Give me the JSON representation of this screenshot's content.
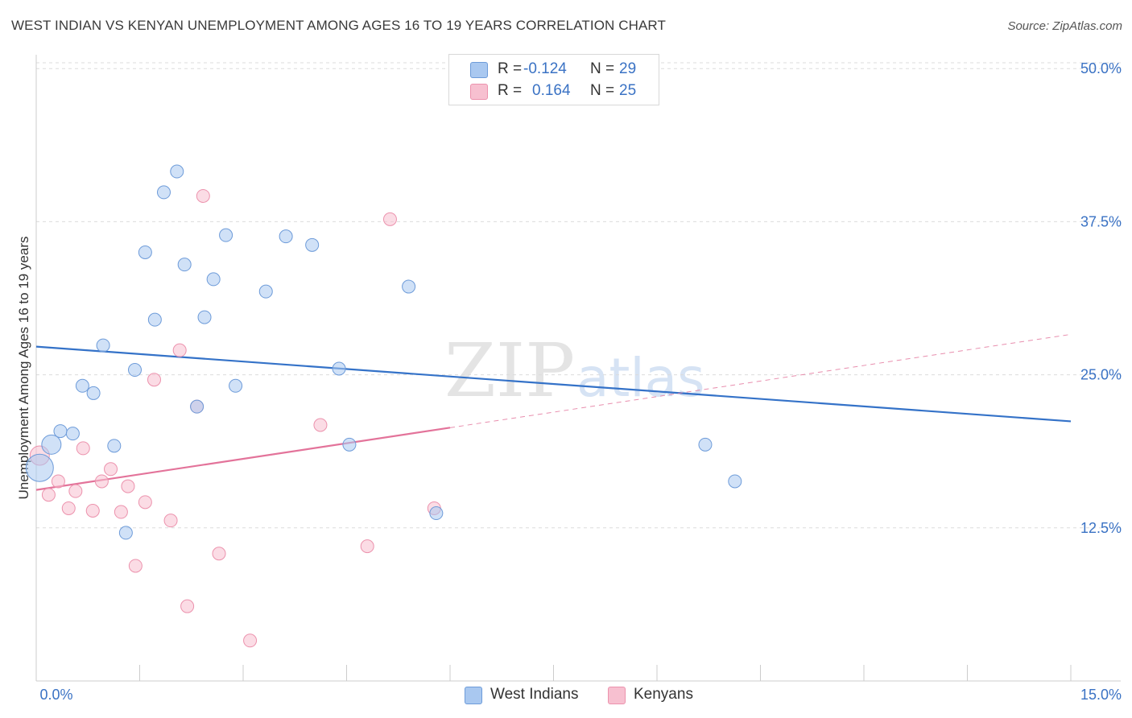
{
  "header": {
    "title": "WEST INDIAN VS KENYAN UNEMPLOYMENT AMONG AGES 16 TO 19 YEARS CORRELATION CHART",
    "source": "Source: ZipAtlas.com"
  },
  "watermark": {
    "zip": "ZIP",
    "atlas": "atlas"
  },
  "legend": {
    "rows": [
      {
        "r_label": "R =",
        "r_value": "-0.124",
        "n_label": "N =",
        "n_value": "29"
      },
      {
        "r_label": "R =",
        "r_value": "0.164",
        "n_label": "N =",
        "n_value": "25"
      }
    ]
  },
  "colors": {
    "west_indian_fill": "#a9c8f0",
    "west_indian_stroke": "#6d9bd9",
    "west_indian_line": "#3472c8",
    "kenyan_fill": "#f7c0d0",
    "kenyan_stroke": "#ec92ad",
    "kenyan_line": "#e3739a",
    "axis_tick_text": "#3a72c4"
  },
  "chart_data": {
    "type": "scatter",
    "title": "WEST INDIAN VS KENYAN UNEMPLOYMENT AMONG AGES 16 TO 19 YEARS CORRELATION CHART",
    "xlabel": "",
    "ylabel": "Unemployment Among Ages 16 to 19 years",
    "xlim": [
      0,
      15
    ],
    "ylim": [
      0,
      51
    ],
    "x_tick_labels": [
      "0.0%",
      "15.0%"
    ],
    "y_ticks": [
      12.5,
      25.0,
      37.5,
      50.0
    ],
    "y_tick_labels": [
      "12.5%",
      "25.0%",
      "37.5%",
      "50.0%"
    ],
    "grid": true,
    "series": [
      {
        "name": "West Indians",
        "r": -0.124,
        "n": 29,
        "trend": {
          "x0": 0,
          "y0": 27.3,
          "x1": 15,
          "y1": 21.2,
          "dashed_from": null
        },
        "points": [
          {
            "x": 0.05,
            "y": 17.4,
            "s": "xl"
          },
          {
            "x": 0.22,
            "y": 19.3,
            "s": "l"
          },
          {
            "x": 0.35,
            "y": 20.4
          },
          {
            "x": 0.53,
            "y": 20.2
          },
          {
            "x": 0.67,
            "y": 24.1
          },
          {
            "x": 0.83,
            "y": 23.5
          },
          {
            "x": 0.97,
            "y": 27.4
          },
          {
            "x": 1.13,
            "y": 19.2
          },
          {
            "x": 1.3,
            "y": 12.1
          },
          {
            "x": 1.43,
            "y": 25.4
          },
          {
            "x": 1.58,
            "y": 35.0
          },
          {
            "x": 1.72,
            "y": 29.5
          },
          {
            "x": 1.85,
            "y": 39.9
          },
          {
            "x": 2.04,
            "y": 41.6
          },
          {
            "x": 2.15,
            "y": 34.0
          },
          {
            "x": 2.33,
            "y": 22.4
          },
          {
            "x": 2.44,
            "y": 29.7
          },
          {
            "x": 2.57,
            "y": 32.8
          },
          {
            "x": 2.75,
            "y": 36.4
          },
          {
            "x": 2.89,
            "y": 24.1
          },
          {
            "x": 3.33,
            "y": 31.8
          },
          {
            "x": 3.62,
            "y": 36.3
          },
          {
            "x": 4.0,
            "y": 35.6
          },
          {
            "x": 4.39,
            "y": 25.5
          },
          {
            "x": 4.54,
            "y": 19.3
          },
          {
            "x": 5.4,
            "y": 32.2
          },
          {
            "x": 5.8,
            "y": 13.7
          },
          {
            "x": 9.7,
            "y": 19.3
          },
          {
            "x": 10.13,
            "y": 16.3
          }
        ]
      },
      {
        "name": "Kenyans",
        "r": 0.164,
        "n": 25,
        "trend": {
          "x0": 0,
          "y0": 15.6,
          "x1": 15,
          "y1": 28.3,
          "dashed_from": 6.0
        },
        "points": [
          {
            "x": 0.05,
            "y": 18.4,
            "s": "l"
          },
          {
            "x": 0.18,
            "y": 15.2
          },
          {
            "x": 0.32,
            "y": 16.3
          },
          {
            "x": 0.47,
            "y": 14.1
          },
          {
            "x": 0.57,
            "y": 15.5
          },
          {
            "x": 0.68,
            "y": 19.0
          },
          {
            "x": 0.82,
            "y": 13.9
          },
          {
            "x": 0.95,
            "y": 16.3
          },
          {
            "x": 1.08,
            "y": 17.3
          },
          {
            "x": 1.23,
            "y": 13.8
          },
          {
            "x": 1.33,
            "y": 15.9
          },
          {
            "x": 1.44,
            "y": 9.4
          },
          {
            "x": 1.58,
            "y": 14.6
          },
          {
            "x": 1.71,
            "y": 24.6
          },
          {
            "x": 1.95,
            "y": 13.1
          },
          {
            "x": 2.08,
            "y": 27.0
          },
          {
            "x": 2.19,
            "y": 6.1
          },
          {
            "x": 2.33,
            "y": 22.4
          },
          {
            "x": 2.42,
            "y": 39.6
          },
          {
            "x": 2.65,
            "y": 10.4
          },
          {
            "x": 3.1,
            "y": 3.3
          },
          {
            "x": 4.12,
            "y": 20.9
          },
          {
            "x": 4.8,
            "y": 11.0
          },
          {
            "x": 5.13,
            "y": 37.7
          },
          {
            "x": 5.77,
            "y": 14.1
          }
        ]
      }
    ]
  }
}
